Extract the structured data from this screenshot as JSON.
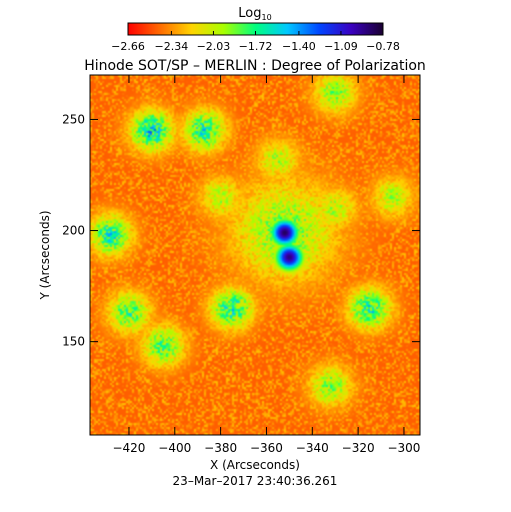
{
  "chart_data": {
    "type": "heatmap",
    "title": "Hinode SOT/SP – MERLIN : Degree of Polarization",
    "subtitle": "23–Mar–2017 23:40:36.261",
    "xlabel": "X (Arcseconds)",
    "ylabel": "Y (Arcseconds)",
    "xlim": [
      -437,
      -293
    ],
    "ylim": [
      108,
      270
    ],
    "x_ticks": [
      -420,
      -400,
      -380,
      -360,
      -340,
      -320,
      -300
    ],
    "x_tick_labels": [
      "−420",
      "−400",
      "−380",
      "−360",
      "−340",
      "−320",
      "−300"
    ],
    "y_ticks": [
      150,
      200,
      250
    ],
    "y_tick_labels": [
      "150",
      "200",
      "250"
    ],
    "colorbar": {
      "label": "Log",
      "label_subscript": "10",
      "range": [
        -2.66,
        -0.78
      ],
      "ticks": [
        -2.66,
        -2.34,
        -2.03,
        -1.72,
        -1.4,
        -1.09,
        -0.78
      ],
      "tick_labels": [
        "−2.66",
        "−2.34",
        "−2.03",
        "−1.72",
        "−1.40",
        "−1.09",
        "−0.78"
      ],
      "colormap": [
        "#ff0000",
        "#ff6a00",
        "#ffd400",
        "#a8ff00",
        "#00ff7f",
        "#00c8ff",
        "#0046ff",
        "#3a00c0",
        "#1a0030"
      ]
    },
    "background_level": -2.45,
    "features": [
      {
        "name": "sunspot-upper",
        "x": -352,
        "y": 199,
        "level": -0.85
      },
      {
        "name": "sunspot-lower",
        "x": -350,
        "y": 188,
        "level": -0.9
      },
      {
        "name": "network-patch-ring",
        "x": -352,
        "y": 200,
        "level": -1.9
      },
      {
        "name": "network-patch-ne",
        "x": -330,
        "y": 210,
        "level": -2.0
      },
      {
        "name": "network-patch-nw",
        "x": -380,
        "y": 215,
        "level": -2.0
      },
      {
        "name": "network-patch-top-left",
        "x": -410,
        "y": 245,
        "level": -1.6
      },
      {
        "name": "network-patch-top-mid",
        "x": -387,
        "y": 245,
        "level": -1.7
      },
      {
        "name": "network-patch-top-right",
        "x": -330,
        "y": 262,
        "level": -1.9
      },
      {
        "name": "network-patch-left",
        "x": -428,
        "y": 198,
        "level": -1.7
      },
      {
        "name": "network-patch-left-mid",
        "x": -420,
        "y": 163,
        "level": -1.8
      },
      {
        "name": "network-patch-center-bottom",
        "x": -375,
        "y": 165,
        "level": -1.7
      },
      {
        "name": "network-patch-bottom",
        "x": -405,
        "y": 148,
        "level": -1.8
      },
      {
        "name": "network-patch-right",
        "x": -315,
        "y": 165,
        "level": -1.7
      },
      {
        "name": "network-patch-right-mid",
        "x": -305,
        "y": 215,
        "level": -2.0
      },
      {
        "name": "network-patch-bottom-right",
        "x": -332,
        "y": 130,
        "level": -1.9
      },
      {
        "name": "network-patch-top-center",
        "x": -355,
        "y": 232,
        "level": -2.0
      }
    ]
  }
}
